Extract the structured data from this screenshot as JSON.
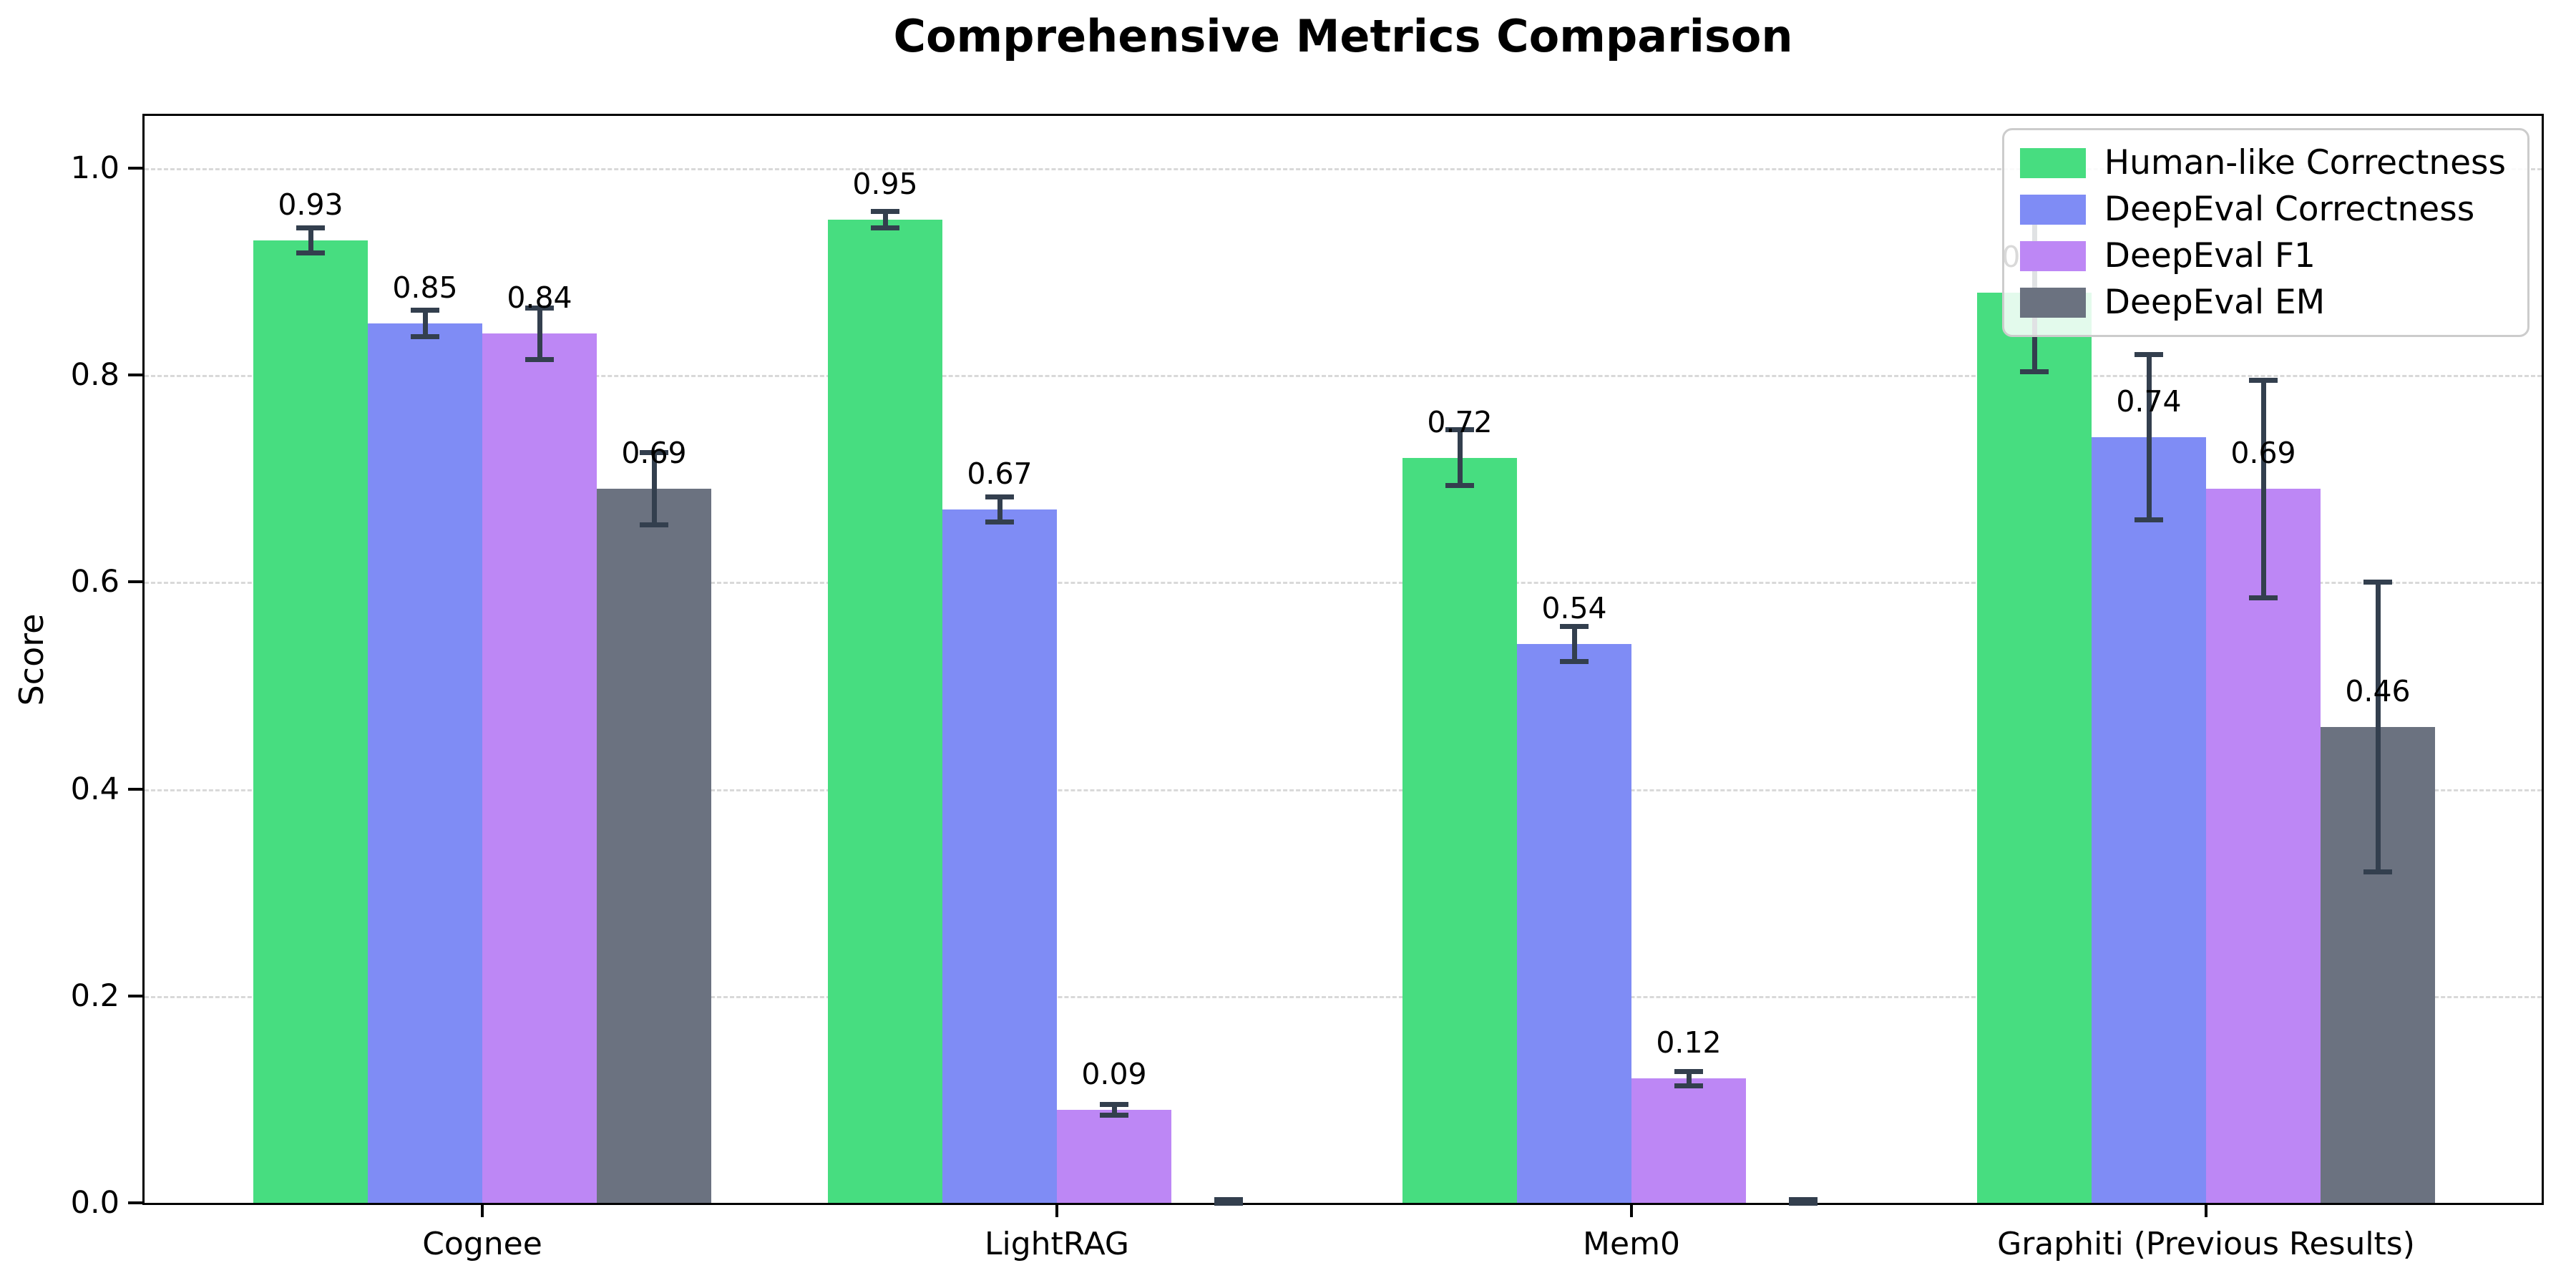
{
  "chart_data": {
    "type": "bar",
    "title": "Comprehensive Metrics Comparison",
    "xlabel": "",
    "ylabel": "Score",
    "categories": [
      "Cognee",
      "LightRAG",
      "Mem0",
      "Graphiti (Previous Results)"
    ],
    "series": [
      {
        "name": "Human-like Correctness",
        "color": "#47dd80",
        "values": [
          0.93,
          0.95,
          0.72,
          0.88
        ],
        "errors": [
          0.012,
          0.008,
          0.027,
          0.077
        ],
        "labels": [
          "0.93",
          "0.95",
          "0.72",
          "0.88"
        ]
      },
      {
        "name": "DeepEval Correctness",
        "color": "#7f8cf5",
        "values": [
          0.85,
          0.67,
          0.54,
          0.74
        ],
        "errors": [
          0.013,
          0.012,
          0.017,
          0.08
        ],
        "labels": [
          "0.85",
          "0.67",
          "0.54",
          "0.74"
        ]
      },
      {
        "name": "DeepEval F1",
        "color": "#bd87f5",
        "values": [
          0.84,
          0.09,
          0.12,
          0.69
        ],
        "errors": [
          0.025,
          0.005,
          0.007,
          0.105
        ],
        "labels": [
          "0.84",
          "0.09",
          "0.12",
          "0.69"
        ]
      },
      {
        "name": "DeepEval EM",
        "color": "#6b7280",
        "values": [
          0.69,
          0.0,
          0.0,
          0.46
        ],
        "errors": [
          0.035,
          0.003,
          0.003,
          0.14
        ],
        "labels": [
          "0.69",
          null,
          null,
          "0.46"
        ]
      }
    ],
    "yticks": [
      0.0,
      0.2,
      0.4,
      0.6,
      0.8,
      1.0
    ],
    "ylim": [
      0,
      1.05
    ],
    "grid": "horizontal dashed",
    "legend_position": "upper right",
    "error_bar_color": "#333f4e",
    "background_color": "#ffffff"
  }
}
